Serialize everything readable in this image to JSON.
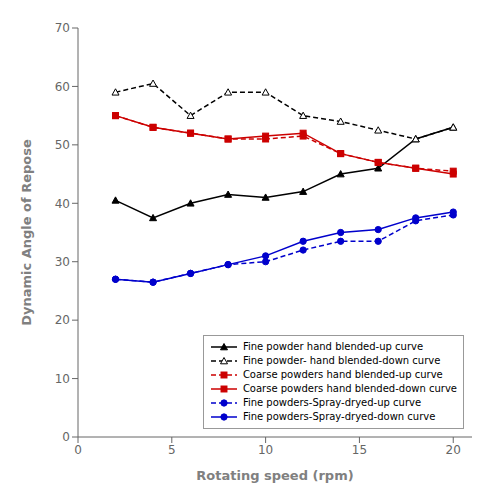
{
  "chart_data": {
    "type": "line",
    "x": [
      2,
      4,
      6,
      8,
      10,
      12,
      14,
      16,
      18,
      20
    ],
    "xlabel": "Rotating speed (rpm)",
    "ylabel": "Dynamic Angle of Repose",
    "xlim": [
      0,
      21
    ],
    "ylim": [
      0,
      70
    ],
    "xticks": [
      0,
      5,
      10,
      15,
      20
    ],
    "yticks": [
      0,
      10,
      20,
      30,
      40,
      50,
      60,
      70
    ],
    "grid": false,
    "legend": "lower right",
    "series": [
      {
        "name": "Fine powder hand blended-up curve",
        "color": "#000000",
        "marker": "triangle",
        "line_style": "solid",
        "values": [
          40.5,
          37.5,
          40.0,
          41.5,
          41.0,
          42.0,
          45.0,
          46.0,
          51.0,
          53.0
        ]
      },
      {
        "name": "Fine powder- hand blended-down curve",
        "color": "#000000",
        "marker": "open-triangle",
        "line_style": "dashed",
        "values": [
          59.0,
          60.5,
          55.0,
          59.0,
          59.0,
          55.0,
          54.0,
          52.5,
          51.0,
          53.0
        ]
      },
      {
        "name": "Coarse powders hand blended-up curve",
        "color": "#cc0000",
        "marker": "square",
        "line_style": "dashed",
        "values": [
          55.0,
          53.0,
          52.0,
          51.0,
          51.0,
          51.5,
          48.5,
          47.0,
          46.0,
          45.5
        ]
      },
      {
        "name": "Coarse powders hand blended-down curve",
        "color": "#cc0000",
        "marker": "square",
        "line_style": "solid",
        "values": [
          55.0,
          53.0,
          52.0,
          51.0,
          51.5,
          52.0,
          48.5,
          47.0,
          46.0,
          45.0
        ]
      },
      {
        "name": "Fine powders-Spray-dryed-up curve",
        "color": "#0000cc",
        "marker": "circle",
        "line_style": "dashed",
        "values": [
          27.0,
          26.5,
          28.0,
          29.5,
          30.0,
          32.0,
          33.5,
          33.5,
          37.0,
          38.0
        ]
      },
      {
        "name": "Fine powders-Spray-dryed-down curve",
        "color": "#0000cc",
        "marker": "circle",
        "line_style": "solid",
        "values": [
          27.0,
          26.5,
          28.0,
          29.5,
          31.0,
          33.5,
          35.0,
          35.5,
          37.5,
          38.5
        ]
      }
    ]
  }
}
